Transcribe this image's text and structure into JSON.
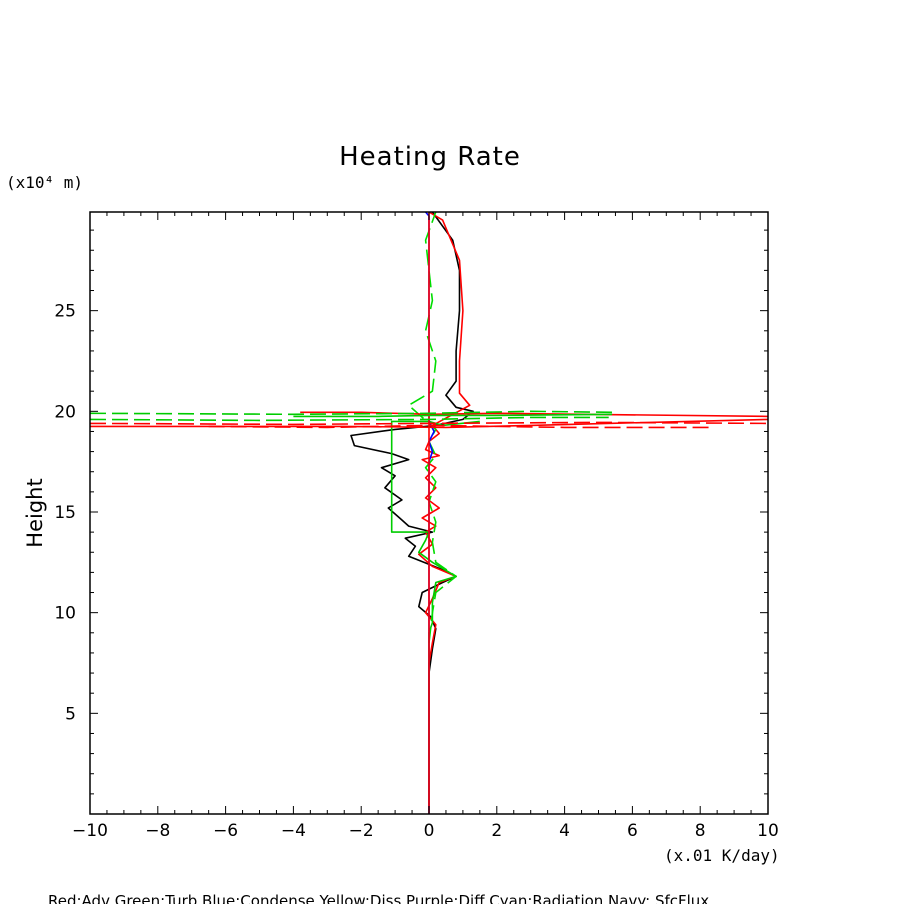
{
  "chart_data": {
    "type": "line",
    "title": "Heating Rate",
    "xlabel": "",
    "ylabel": "Height",
    "x_unit": "(x.01 K/day)",
    "y_unit": "(x10⁴ m)",
    "xlim": [
      -10,
      10
    ],
    "ylim": [
      0,
      29.9
    ],
    "x_ticks": [
      -10,
      -8,
      -6,
      -4,
      -2,
      0,
      2,
      4,
      6,
      8,
      10
    ],
    "y_ticks": [
      5,
      10,
      15,
      20,
      25
    ],
    "legend_text": "Red:Adv  Green:Turb  Blue:Condense  Yellow:Diss  Purple:Diff  Cyan:Radiation  Navy: SfcFlux",
    "legend_position": "bottom",
    "grid": false,
    "series": [
      {
        "color": "#000000",
        "dash": "solid",
        "points": [
          [
            0,
            0.2
          ],
          [
            0,
            5
          ],
          [
            0,
            7
          ],
          [
            0.1,
            8.2
          ],
          [
            0.2,
            9.2
          ],
          [
            0.05,
            9.8
          ],
          [
            -0.3,
            10.3
          ],
          [
            -0.2,
            11
          ],
          [
            0.4,
            11.5
          ],
          [
            0.8,
            11.8
          ],
          [
            0.3,
            12.2
          ],
          [
            -0.6,
            12.8
          ],
          [
            -0.4,
            13.3
          ],
          [
            -0.7,
            13.7
          ],
          [
            0.1,
            14
          ],
          [
            -0.6,
            14.3
          ],
          [
            -0.8,
            14.6
          ],
          [
            -1.2,
            15.2
          ],
          [
            -0.8,
            15.6
          ],
          [
            -1.3,
            16.2
          ],
          [
            -1.0,
            16.8
          ],
          [
            -1.4,
            17.2
          ],
          [
            -0.6,
            17.6
          ],
          [
            -1.1,
            17.9
          ],
          [
            -2.2,
            18.3
          ],
          [
            -2.3,
            18.8
          ],
          [
            -1.0,
            19.1
          ],
          [
            0.2,
            19.3
          ],
          [
            1.0,
            19.6
          ],
          [
            1.3,
            20.0
          ],
          [
            0.8,
            20.2
          ],
          [
            0.5,
            20.8
          ],
          [
            0.8,
            21.5
          ],
          [
            0.8,
            23
          ],
          [
            0.9,
            25
          ],
          [
            0.9,
            27
          ],
          [
            0.7,
            28.5
          ],
          [
            0.1,
            29.9
          ]
        ]
      },
      {
        "color": "#ff0000",
        "dash": "solid",
        "points": [
          [
            0,
            0.2
          ],
          [
            0,
            7.5
          ],
          [
            0.1,
            8.5
          ],
          [
            0.2,
            9.4
          ],
          [
            -0.1,
            10
          ],
          [
            0.1,
            10.7
          ],
          [
            0.3,
            11.5
          ],
          [
            0.8,
            11.8
          ],
          [
            0.1,
            12.3
          ],
          [
            -0.3,
            12.9
          ],
          [
            0.1,
            13.4
          ],
          [
            -0.1,
            14
          ],
          [
            0.2,
            14.3
          ],
          [
            -0.2,
            14.7
          ],
          [
            0.3,
            15.2
          ],
          [
            -0.1,
            15.7
          ],
          [
            0.2,
            16.2
          ],
          [
            -0.1,
            16.7
          ],
          [
            0.2,
            17.2
          ],
          [
            -0.2,
            17.6
          ],
          [
            0.3,
            17.8
          ],
          [
            -0.1,
            18.1
          ],
          [
            0,
            18.5
          ],
          [
            0.3,
            18.9
          ],
          [
            0.1,
            19.3
          ],
          [
            1.2,
            20.3
          ],
          [
            0.9,
            20.9
          ],
          [
            0.9,
            22.5
          ],
          [
            1.0,
            25
          ],
          [
            0.9,
            27.5
          ],
          [
            0.4,
            29.5
          ],
          [
            0,
            29.9
          ]
        ]
      },
      {
        "color": "#00cc00",
        "dash": "solid",
        "points": [
          [
            0,
            0
          ],
          [
            0,
            6
          ],
          [
            0,
            9
          ],
          [
            0.1,
            9.5
          ],
          [
            0.1,
            10.5
          ],
          [
            0.2,
            11.5
          ],
          [
            0.8,
            11.8
          ],
          [
            0.1,
            12.5
          ],
          [
            -0.3,
            13
          ],
          [
            -0.1,
            13.6
          ],
          [
            0,
            14
          ],
          [
            -1.1,
            14
          ],
          [
            -1.1,
            19.5
          ],
          [
            0,
            19.5
          ],
          [
            0.4,
            19.3
          ],
          [
            1.5,
            19.5
          ]
        ]
      },
      {
        "color": "#00dd00",
        "dash": "dashed",
        "points": [
          [
            0,
            8.5
          ],
          [
            0.1,
            10
          ],
          [
            0.2,
            11
          ],
          [
            0.8,
            11.8
          ],
          [
            0.2,
            12.5
          ],
          [
            0.1,
            13.5
          ],
          [
            0.2,
            14.5
          ],
          [
            0,
            15.5
          ],
          [
            0.2,
            16.5
          ],
          [
            -0.1,
            17.2
          ],
          [
            0.2,
            17.8
          ],
          [
            0,
            18.5
          ],
          [
            0.2,
            19.1
          ],
          [
            -0.6,
            20.3
          ],
          [
            0.1,
            21
          ],
          [
            0.2,
            22.5
          ],
          [
            -0.1,
            24
          ],
          [
            0.1,
            25.5
          ],
          [
            0,
            27
          ],
          [
            -0.1,
            28.5
          ],
          [
            0.2,
            29.9
          ]
        ]
      },
      {
        "color": "#0000ff",
        "dash": "solid",
        "points": [
          [
            0,
            0
          ],
          [
            0,
            17.5
          ],
          [
            0.1,
            18
          ],
          [
            0,
            18.5
          ],
          [
            0.15,
            19
          ],
          [
            0,
            19.5
          ],
          [
            0,
            29.7
          ],
          [
            -0.1,
            29.9
          ]
        ]
      },
      {
        "color": "#ff0000",
        "dash": "solid",
        "points": [
          [
            0,
            0
          ],
          [
            0,
            29.9
          ]
        ]
      },
      {
        "color": "#ff0000",
        "dash": "solid",
        "points": [
          [
            -10,
            19.25
          ],
          [
            -2.5,
            19.25
          ],
          [
            0.5,
            19.2
          ],
          [
            3,
            19.3
          ],
          [
            10,
            19.6
          ]
        ]
      },
      {
        "color": "#ff0000",
        "dash": "solid",
        "points": [
          [
            -3.8,
            19.95
          ],
          [
            -2,
            19.95
          ],
          [
            0,
            19.85
          ],
          [
            2,
            19.9
          ],
          [
            10,
            19.75
          ]
        ]
      },
      {
        "color": "#ff0000",
        "dash": "dashed",
        "points": [
          [
            -6.5,
            19.25
          ],
          [
            -3,
            19.2
          ],
          [
            0,
            19.3
          ],
          [
            4,
            19.2
          ],
          [
            8.4,
            19.2
          ]
        ]
      },
      {
        "color": "#ff0000",
        "dash": "dashed",
        "points": [
          [
            -10,
            19.4
          ],
          [
            -4,
            19.35
          ],
          [
            0,
            19.4
          ],
          [
            5,
            19.45
          ],
          [
            10,
            19.4
          ]
        ]
      },
      {
        "color": "#00cc00",
        "dash": "dashed",
        "points": [
          [
            -10,
            19.9
          ],
          [
            -4,
            19.85
          ],
          [
            0,
            19.9
          ],
          [
            3,
            20
          ],
          [
            5.4,
            19.95
          ]
        ]
      },
      {
        "color": "#00cc00",
        "dash": "dashed",
        "points": [
          [
            -10,
            19.6
          ],
          [
            -5,
            19.55
          ],
          [
            0,
            19.6
          ],
          [
            3,
            19.7
          ],
          [
            5.3,
            19.7
          ]
        ]
      },
      {
        "color": "#00cc00",
        "dash": "solid",
        "points": [
          [
            -4,
            19.75
          ],
          [
            -1.5,
            19.75
          ],
          [
            0,
            19.8
          ],
          [
            2,
            19.8
          ],
          [
            5.4,
            19.85
          ]
        ]
      }
    ]
  }
}
